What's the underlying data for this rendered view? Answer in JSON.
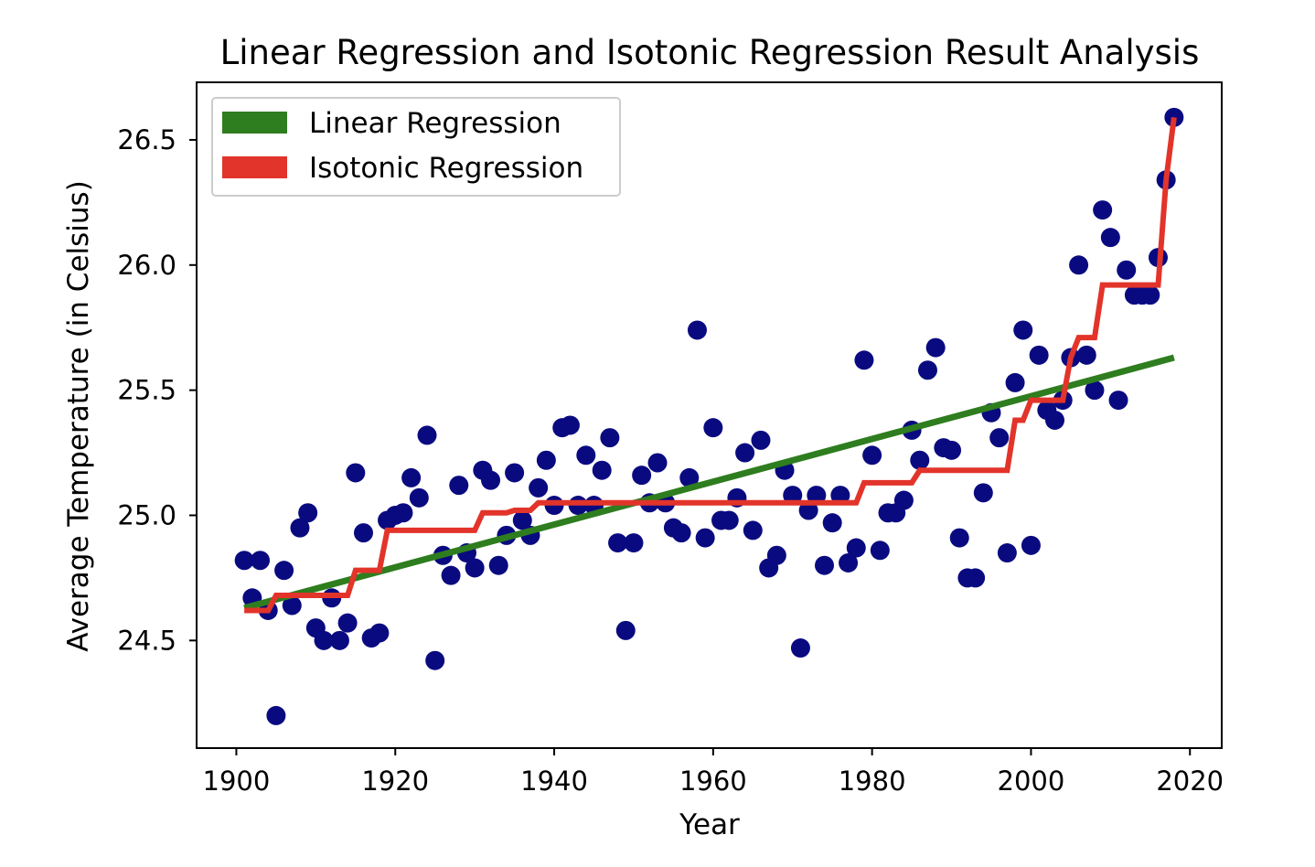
{
  "chart_data": {
    "type": "scatter",
    "title": "Linear Regression and Isotonic Regression Result Analysis",
    "xlabel": "Year",
    "ylabel": "Average Temperature (in Celsius)",
    "xlim": [
      1895,
      2024
    ],
    "ylim": [
      24.07,
      26.73
    ],
    "xticks": [
      1900,
      1920,
      1940,
      1960,
      1980,
      2000,
      2020
    ],
    "yticks": [
      24.5,
      25.0,
      25.5,
      26.0,
      26.5
    ],
    "ytick_labels": [
      "24.5",
      "25.0",
      "25.5",
      "26.0",
      "26.5"
    ],
    "grid": false,
    "legend_position": "top-left",
    "legend": [
      {
        "label": "Linear Regression",
        "color": "#2e7d1f"
      },
      {
        "label": "Isotonic Regression",
        "color": "#e2342a"
      }
    ],
    "colors": {
      "points": "#0a0a80",
      "linear": "#2e7d1f",
      "isotonic": "#e2342a"
    },
    "scatter": {
      "x": [
        1901,
        1902,
        1903,
        1904,
        1905,
        1906,
        1907,
        1908,
        1909,
        1910,
        1911,
        1912,
        1913,
        1914,
        1915,
        1916,
        1917,
        1918,
        1919,
        1920,
        1921,
        1922,
        1923,
        1924,
        1925,
        1926,
        1927,
        1928,
        1929,
        1930,
        1931,
        1932,
        1933,
        1934,
        1935,
        1936,
        1937,
        1938,
        1939,
        1940,
        1941,
        1942,
        1943,
        1944,
        1945,
        1946,
        1947,
        1948,
        1949,
        1950,
        1951,
        1952,
        1953,
        1954,
        1955,
        1956,
        1957,
        1958,
        1959,
        1960,
        1961,
        1962,
        1963,
        1964,
        1965,
        1966,
        1967,
        1968,
        1969,
        1970,
        1971,
        1972,
        1973,
        1974,
        1975,
        1976,
        1977,
        1978,
        1979,
        1980,
        1981,
        1982,
        1983,
        1984,
        1985,
        1986,
        1987,
        1988,
        1989,
        1990,
        1991,
        1992,
        1993,
        1994,
        1995,
        1996,
        1997,
        1998,
        1999,
        2000,
        2001,
        2002,
        2003,
        2004,
        2005,
        2006,
        2007,
        2008,
        2009,
        2010,
        2011,
        2012,
        2013,
        2014,
        2015,
        2016,
        2017,
        2018
      ],
      "y": [
        24.82,
        24.67,
        24.82,
        24.62,
        24.2,
        24.78,
        24.64,
        24.95,
        25.01,
        24.55,
        24.5,
        24.67,
        24.5,
        24.57,
        25.17,
        24.93,
        24.51,
        24.53,
        24.98,
        25.0,
        25.01,
        25.15,
        25.07,
        25.32,
        24.42,
        24.84,
        24.76,
        25.12,
        24.85,
        24.79,
        25.18,
        25.14,
        24.8,
        24.92,
        25.17,
        24.98,
        24.92,
        25.11,
        25.22,
        25.04,
        25.35,
        25.36,
        25.04,
        25.24,
        25.04,
        25.18,
        25.31,
        24.89,
        24.54,
        24.89,
        25.16,
        25.05,
        25.21,
        25.05,
        24.95,
        24.93,
        25.15,
        25.74,
        24.91,
        25.35,
        24.98,
        24.98,
        25.07,
        25.25,
        24.94,
        25.3,
        24.79,
        24.84,
        25.18,
        25.08,
        24.47,
        25.02,
        25.08,
        24.8,
        24.97,
        25.08,
        24.81,
        24.87,
        25.62,
        25.24,
        24.86,
        25.01,
        25.01,
        25.06,
        25.34,
        25.22,
        25.58,
        25.67,
        25.27,
        25.26,
        24.91,
        24.75,
        24.75,
        25.09,
        25.41,
        25.31,
        24.85,
        25.53,
        25.74,
        24.88,
        25.64,
        25.42,
        25.38,
        25.46,
        25.63,
        26.0,
        25.64,
        25.5,
        26.22,
        26.11,
        25.46,
        25.98,
        25.88,
        25.88,
        25.88,
        26.03,
        26.34,
        26.59
      ]
    },
    "series": [
      {
        "name": "Linear Regression",
        "type": "line",
        "x": [
          1901,
          2018
        ],
        "y": [
          24.63,
          25.63
        ]
      },
      {
        "name": "Isotonic Regression",
        "type": "step",
        "x": [
          1901,
          1904,
          1905,
          1913,
          1914,
          1915,
          1917,
          1918,
          1919,
          1929,
          1930,
          1931,
          1934,
          1935,
          1937,
          1938,
          1939,
          1978,
          1979,
          1984,
          1985,
          1986,
          1997,
          1998,
          1999,
          2000,
          2001,
          2004,
          2005,
          2006,
          2008,
          2009,
          2016,
          2017,
          2018
        ],
        "y": [
          24.62,
          24.62,
          24.68,
          24.68,
          24.68,
          24.78,
          24.78,
          24.78,
          24.94,
          24.94,
          24.94,
          25.01,
          25.01,
          25.02,
          25.02,
          25.05,
          25.05,
          25.05,
          25.13,
          25.13,
          25.13,
          25.18,
          25.18,
          25.38,
          25.38,
          25.46,
          25.46,
          25.46,
          25.63,
          25.71,
          25.71,
          25.92,
          25.92,
          26.34,
          26.59
        ]
      }
    ]
  }
}
